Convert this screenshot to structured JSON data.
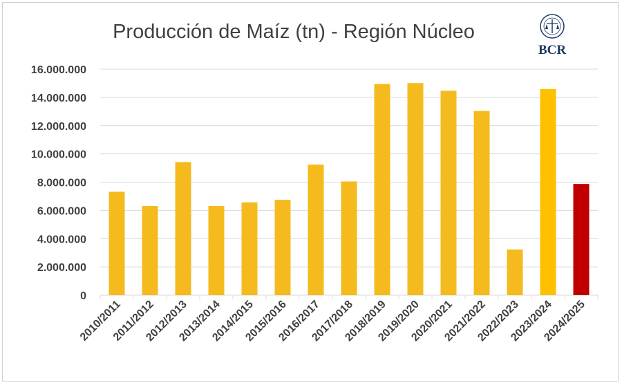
{
  "chart_data": {
    "type": "bar",
    "title": "Producción de Maíz (tn) - Región Núcleo",
    "xlabel": "",
    "ylabel": "",
    "ylim": [
      0,
      16000000
    ],
    "yticks": [
      "0",
      "2.000.000",
      "4.000.000",
      "6.000.000",
      "8.000.000",
      "10.000.000",
      "12.000.000",
      "14.000.000",
      "16.000.000"
    ],
    "grid": true,
    "categories": [
      "2010/2011",
      "2011/2012",
      "2012/2013",
      "2013/2014",
      "2014/2015",
      "2015/2016",
      "2016/2017",
      "2017/2018",
      "2018/2019",
      "2019/2020",
      "2020/2021",
      "2021/2022",
      "2022/2023",
      "2023/2024",
      "2024/2025"
    ],
    "values": [
      7320000,
      6310000,
      9420000,
      6310000,
      6570000,
      6750000,
      9240000,
      8050000,
      14950000,
      15010000,
      14470000,
      13040000,
      3230000,
      14590000,
      7870000
    ],
    "colors": [
      "#f5bb1e",
      "#f5bb1e",
      "#f5bb1e",
      "#f5bb1e",
      "#f5bb1e",
      "#f5bb1e",
      "#f5bb1e",
      "#f5bb1e",
      "#f5bb1e",
      "#f5bb1e",
      "#f5bb1e",
      "#f5bb1e",
      "#f5bb1e",
      "#ffc000",
      "#c00000"
    ]
  },
  "logo": {
    "text": "BCR",
    "color": "#1f3864"
  }
}
